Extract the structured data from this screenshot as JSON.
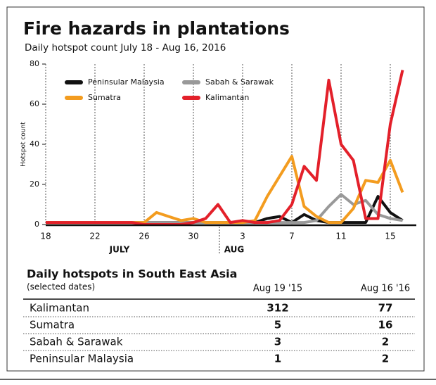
{
  "chart_data": {
    "type": "line",
    "title": "Fire hazards in plantations",
    "subtitle": "Daily hotspot count July 18 - Aug 16, 2016",
    "ylabel": "Hotspot count",
    "categories": [
      "18",
      null,
      null,
      null,
      "22",
      null,
      null,
      null,
      "26",
      null,
      null,
      null,
      "30",
      null,
      null,
      null,
      "3",
      null,
      null,
      null,
      "7",
      null,
      null,
      null,
      "11",
      null,
      null,
      null,
      "15",
      null
    ],
    "annotations": [
      "JULY",
      "AUG"
    ],
    "ylim": [
      0,
      80
    ],
    "yticks": [
      0,
      20,
      40,
      60,
      80
    ],
    "xgrid": true,
    "series": [
      {
        "name": "Peninsular Malaysia",
        "color": "#111111",
        "values": [
          1,
          1,
          1,
          1,
          1,
          1,
          1,
          1,
          1,
          1,
          1,
          1,
          1,
          1,
          1,
          1,
          1,
          1,
          3,
          4,
          1,
          5,
          2,
          1,
          1,
          1,
          1,
          14,
          6,
          2
        ]
      },
      {
        "name": "Sabah & Sarawak",
        "color": "#999999",
        "values": [
          1,
          1,
          1,
          1,
          1,
          1,
          1,
          1,
          1,
          1,
          1,
          1,
          1,
          1,
          1,
          1,
          1,
          1,
          1,
          1,
          1,
          1,
          2,
          9,
          15,
          10,
          12,
          5,
          3,
          2
        ]
      },
      {
        "name": "Sumatra",
        "color": "#f39c1f",
        "values": [
          1,
          1,
          1,
          1,
          1,
          1,
          1,
          1,
          1,
          6,
          4,
          2,
          3,
          1,
          1,
          1,
          1,
          2,
          14,
          24,
          34,
          9,
          4,
          1,
          1,
          8,
          22,
          21,
          32,
          16
        ]
      },
      {
        "name": "Kalimantan",
        "color": "#e3202a",
        "values": [
          1,
          1,
          1,
          1,
          1,
          1,
          1,
          1,
          0,
          0,
          0,
          0,
          1,
          3,
          10,
          1,
          2,
          1,
          1,
          2,
          10,
          29,
          22,
          72,
          40,
          32,
          3,
          3,
          50,
          77
        ]
      }
    ]
  },
  "table": {
    "title": "Daily hotspots in South East Asia",
    "subtitle": "(selected dates)",
    "columns": [
      "Aug 19 '15",
      "Aug 16 '16"
    ],
    "rows": [
      [
        "Kalimantan",
        312,
        77
      ],
      [
        "Sumatra",
        5,
        16
      ],
      [
        "Sabah & Sarawak",
        3,
        2
      ],
      [
        "Peninsular Malaysia",
        1,
        2
      ]
    ]
  }
}
